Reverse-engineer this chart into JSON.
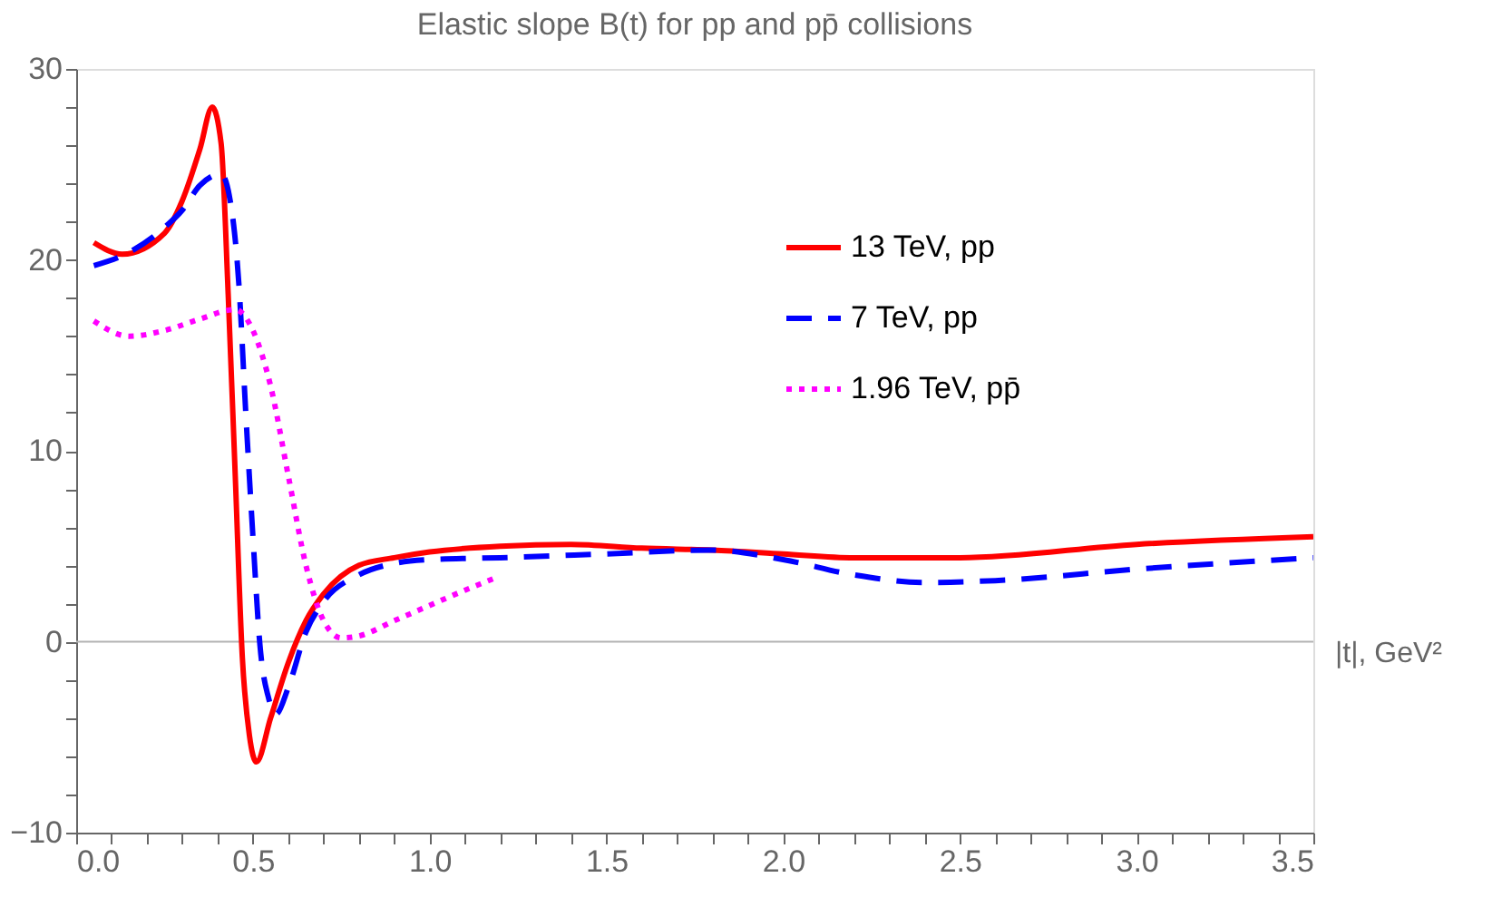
{
  "chart_data": {
    "type": "line",
    "title": "Elastic slope B(t) for pp and pp̄ collisions",
    "xlabel": "|t|, GeV²",
    "xlim": [
      0,
      3.5
    ],
    "ylim": [
      -10,
      30
    ],
    "xticks": [
      {
        "value": 0,
        "label": "0.0"
      },
      {
        "value": 0.1,
        "label": null
      },
      {
        "value": 0.2,
        "label": null
      },
      {
        "value": 0.3,
        "label": null
      },
      {
        "value": 0.4,
        "label": null
      },
      {
        "value": 0.5,
        "label": "0.5"
      },
      {
        "value": 0.6,
        "label": null
      },
      {
        "value": 0.7,
        "label": null
      },
      {
        "value": 0.8,
        "label": null
      },
      {
        "value": 0.9,
        "label": null
      },
      {
        "value": 1,
        "label": "1.0"
      },
      {
        "value": 1.1,
        "label": null
      },
      {
        "value": 1.2,
        "label": null
      },
      {
        "value": 1.3,
        "label": null
      },
      {
        "value": 1.4,
        "label": null
      },
      {
        "value": 1.5,
        "label": "1.5"
      },
      {
        "value": 1.6,
        "label": null
      },
      {
        "value": 1.7,
        "label": null
      },
      {
        "value": 1.8,
        "label": null
      },
      {
        "value": 1.9,
        "label": null
      },
      {
        "value": 2,
        "label": "2.0"
      },
      {
        "value": 2.1,
        "label": null
      },
      {
        "value": 2.2,
        "label": null
      },
      {
        "value": 2.3,
        "label": null
      },
      {
        "value": 2.4,
        "label": null
      },
      {
        "value": 2.5,
        "label": "2.5"
      },
      {
        "value": 2.6,
        "label": null
      },
      {
        "value": 2.7,
        "label": null
      },
      {
        "value": 2.8,
        "label": null
      },
      {
        "value": 2.9,
        "label": null
      },
      {
        "value": 3,
        "label": "3.0"
      },
      {
        "value": 3.1,
        "label": null
      },
      {
        "value": 3.2,
        "label": null
      },
      {
        "value": 3.3,
        "label": null
      },
      {
        "value": 3.4,
        "label": null
      },
      {
        "value": 3.5,
        "label": "3.5"
      }
    ],
    "yticks": [
      {
        "value": -10,
        "label": "−10"
      },
      {
        "value": -8,
        "label": null
      },
      {
        "value": -6,
        "label": null
      },
      {
        "value": -4,
        "label": null
      },
      {
        "value": -2,
        "label": null
      },
      0,
      {
        "value": 2,
        "label": null
      },
      {
        "value": 4,
        "label": null
      },
      {
        "value": 6,
        "label": null
      },
      {
        "value": 8,
        "label": null
      },
      10,
      {
        "value": 12,
        "label": null
      },
      {
        "value": 14,
        "label": null
      },
      {
        "value": 16,
        "label": null
      },
      {
        "value": 18,
        "label": null
      },
      20,
      {
        "value": 22,
        "label": null
      },
      {
        "value": 24,
        "label": null
      },
      {
        "value": 26,
        "label": null
      },
      {
        "value": 28,
        "label": null
      },
      30
    ],
    "ref_lines": [
      {
        "axis": "y",
        "value": 0,
        "color": "#b3b3b3"
      }
    ],
    "grid": false,
    "legend": "top right",
    "marker": "none",
    "series": [
      {
        "name": "13 TeV, pp",
        "color": "#ff0000",
        "line_style": "solid",
        "x": [
          0.05,
          0.13,
          0.25,
          0.3,
          0.35,
          0.385,
          0.41,
          0.43,
          0.45,
          0.47,
          0.49,
          0.51,
          0.55,
          0.6,
          0.65,
          0.7,
          0.8,
          0.9,
          1.0,
          1.2,
          1.4,
          1.6,
          1.8,
          2.0,
          2.2,
          2.5,
          3.0,
          3.5
        ],
        "values": [
          20.9,
          20.3,
          21.4,
          23.1,
          25.8,
          28.0,
          26.1,
          18.2,
          8.7,
          -0.8,
          -4.9,
          -6.3,
          -4.0,
          -1.1,
          1.1,
          2.5,
          4.0,
          4.4,
          4.7,
          5.0,
          5.1,
          4.9,
          4.8,
          4.6,
          4.4,
          4.4,
          5.1,
          5.5
        ]
      },
      {
        "name": "7 TeV, pp",
        "color": "#0000ff",
        "line_style": "dashed",
        "x": [
          0.05,
          0.15,
          0.25,
          0.3,
          0.35,
          0.41,
          0.44,
          0.46,
          0.48,
          0.5,
          0.52,
          0.545,
          0.565,
          0.6,
          0.65,
          0.7,
          0.8,
          0.9,
          1.0,
          1.2,
          1.5,
          1.8,
          2.0,
          2.2,
          2.4,
          2.6,
          3.0,
          3.5
        ],
        "values": [
          19.7,
          20.4,
          21.7,
          22.6,
          23.9,
          24.5,
          22.6,
          18.8,
          11.9,
          5.5,
          -0.2,
          -3.0,
          -3.8,
          -2.4,
          0.5,
          2.1,
          3.5,
          4.1,
          4.3,
          4.4,
          4.6,
          4.8,
          4.3,
          3.5,
          3.1,
          3.2,
          3.8,
          4.4
        ]
      },
      {
        "name": "1.96 TeV, pp̄",
        "color": "#ff00ff",
        "line_style": "dotted",
        "x": [
          0.05,
          0.15,
          0.25,
          0.35,
          0.45,
          0.5,
          0.55,
          0.6,
          0.65,
          0.7,
          0.75,
          0.8,
          0.9,
          1.0,
          1.1,
          1.18
        ],
        "values": [
          16.8,
          16.0,
          16.3,
          16.9,
          17.4,
          16.3,
          13.4,
          8.7,
          4.0,
          1.1,
          0.2,
          0.3,
          1.1,
          1.9,
          2.7,
          3.3
        ]
      }
    ]
  }
}
